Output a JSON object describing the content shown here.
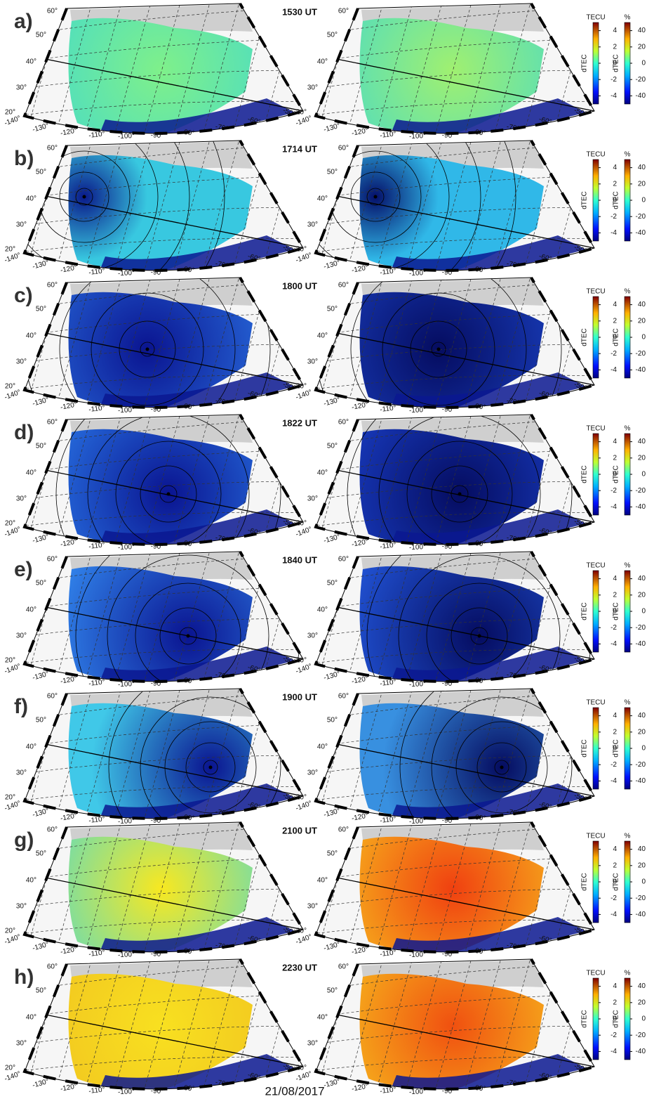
{
  "date": "21/08/2017",
  "panels": [
    {
      "label": "a)",
      "time": "1530 UT"
    },
    {
      "label": "b)",
      "time": "1714 UT"
    },
    {
      "label": "c)",
      "time": "1800 UT"
    },
    {
      "label": "d)",
      "time": "1822 UT"
    },
    {
      "label": "e)",
      "time": "1840 UT"
    },
    {
      "label": "f)",
      "time": "1900 UT"
    },
    {
      "label": "g)",
      "time": "2100 UT"
    },
    {
      "label": "h)",
      "time": "2230 UT"
    }
  ],
  "map_axes": {
    "lat_labels": [
      "20°",
      "30°",
      "40°",
      "50°",
      "60°"
    ],
    "lon_labels": [
      "-140°",
      "-130°",
      "-120°",
      "-110°",
      "-100°",
      "-90°",
      "-80°",
      "-70°",
      "-60°",
      "-50°"
    ]
  },
  "colorbars": {
    "absolute": {
      "unit": "TECU",
      "title": "dTEC",
      "lim": [
        -5,
        5
      ],
      "ticks": [
        4,
        2,
        0,
        -2,
        -4
      ]
    },
    "relative": {
      "unit": "%",
      "title": "dTEC",
      "lim": [
        -50,
        50
      ],
      "ticks": [
        40,
        20,
        0,
        -20,
        -40
      ]
    }
  }
}
